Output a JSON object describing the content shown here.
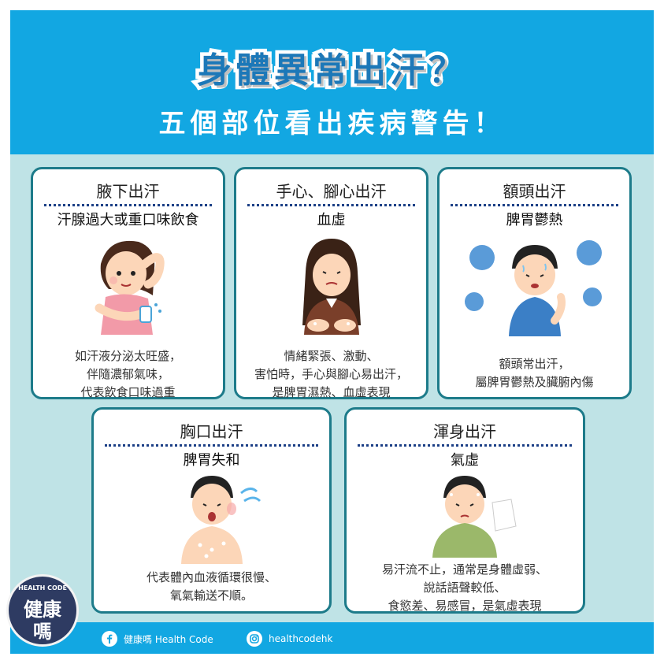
{
  "header": {
    "title_line1": "身體異常出汗？",
    "title_line2": "五個部位看出疾病警告！"
  },
  "cards": [
    {
      "title": "腋下出汗",
      "subtitle": "汗腺過大或重口味飲食",
      "desc": [
        "如汗液分泌太旺盛，",
        "伴隨濃郁氣味，",
        "代表飲食口味過重"
      ]
    },
    {
      "title": "手心、腳心出汗",
      "subtitle": "血虛",
      "desc": [
        "情緒緊張、激動、",
        "害怕時，手心與腳心易出汗，",
        "是脾胃濕熱、血虛表現"
      ]
    },
    {
      "title": "額頭出汗",
      "subtitle": "脾胃鬱熱",
      "desc": [
        "額頭常出汗，",
        "屬脾胃鬱熱及臟腑內傷"
      ]
    },
    {
      "title": "胸口出汗",
      "subtitle": "脾胃失和",
      "desc": [
        "代表體內血液循環很慢、",
        "氧氣輸送不順。"
      ]
    },
    {
      "title": "渾身出汗",
      "subtitle": "氣虛",
      "desc": [
        "易汗流不止，通常是身體虛弱、",
        "說話語聲較低、",
        "食慾差、易感冒，是氣虛表現"
      ]
    }
  ],
  "footer": {
    "facebook_label": "健康嗎 Health Code",
    "instagram_label": "healthcodehk",
    "facebook_icon": "facebook-icon",
    "instagram_icon": "instagram-icon"
  },
  "logo": {
    "text_top": "HEALTH CODE",
    "text_line1": "健康",
    "text_line2": "嗎"
  },
  "colors": {
    "header_blue": "#12a7e2",
    "background_teal": "#bfe3e6",
    "card_border": "#1d7b8a",
    "title_blue": "#1c78b8"
  }
}
